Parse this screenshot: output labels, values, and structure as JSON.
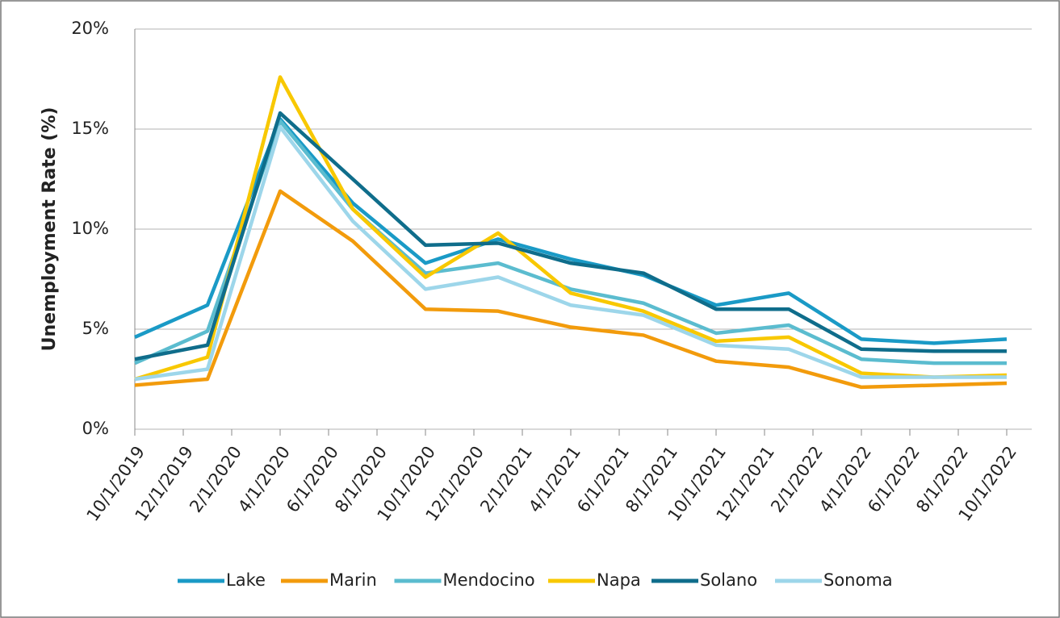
{
  "chart_data": {
    "type": "line",
    "y_label": "Unemployment Rate (%)",
    "x": [
      "2019-10",
      "2020-01",
      "2020-04",
      "2020-07",
      "2020-10",
      "2021-01",
      "2021-04",
      "2021-07",
      "2021-10",
      "2022-01",
      "2022-04",
      "2022-07",
      "2022-10"
    ],
    "xlim": [
      "2019-10",
      "2022-10"
    ],
    "xticks": [
      {
        "value": "2019-10",
        "label": "10/1/2019"
      },
      {
        "value": "2019-12",
        "label": "12/1/2019"
      },
      {
        "value": "2020-02",
        "label": "2/1/2020"
      },
      {
        "value": "2020-04",
        "label": "4/1/2020"
      },
      {
        "value": "2020-06",
        "label": "6/1/2020"
      },
      {
        "value": "2020-08",
        "label": "8/1/2020"
      },
      {
        "value": "2020-10",
        "label": "10/1/2020"
      },
      {
        "value": "2020-12",
        "label": "12/1/2020"
      },
      {
        "value": "2021-02",
        "label": "2/1/2021"
      },
      {
        "value": "2021-04",
        "label": "4/1/2021"
      },
      {
        "value": "2021-06",
        "label": "6/1/2021"
      },
      {
        "value": "2021-08",
        "label": "8/1/2021"
      },
      {
        "value": "2021-10",
        "label": "10/1/2021"
      },
      {
        "value": "2021-12",
        "label": "12/1/2021"
      },
      {
        "value": "2022-02",
        "label": "2/1/2022"
      },
      {
        "value": "2022-04",
        "label": "4/1/2022"
      },
      {
        "value": "2022-06",
        "label": "6/1/2022"
      },
      {
        "value": "2022-08",
        "label": "8/1/2022"
      },
      {
        "value": "2022-10",
        "label": "10/1/2022"
      }
    ],
    "ylim": [
      0,
      20
    ],
    "yticks": [
      {
        "value": 0,
        "label": "0%"
      },
      {
        "value": 5,
        "label": "5%"
      },
      {
        "value": 10,
        "label": "10%"
      },
      {
        "value": 15,
        "label": "15%"
      },
      {
        "value": 20,
        "label": "20%"
      }
    ],
    "grid": true,
    "legend": "bottom",
    "series": [
      {
        "name": "Lake",
        "color": "#1a9ac6",
        "values": [
          4.6,
          6.2,
          15.5,
          11.3,
          8.3,
          9.5,
          8.5,
          7.7,
          6.2,
          6.8,
          4.5,
          4.3,
          4.5
        ]
      },
      {
        "name": "Marin",
        "color": "#f29b0c",
        "values": [
          2.2,
          2.5,
          11.9,
          9.4,
          6.0,
          5.9,
          5.1,
          4.7,
          3.4,
          3.1,
          2.1,
          2.2,
          2.3
        ]
      },
      {
        "name": "Mendocino",
        "color": "#5bbccf",
        "values": [
          3.3,
          4.9,
          15.4,
          11.0,
          7.8,
          8.3,
          7.0,
          6.3,
          4.8,
          5.2,
          3.5,
          3.3,
          3.3
        ]
      },
      {
        "name": "Napa",
        "color": "#f8c800",
        "values": [
          2.5,
          3.6,
          17.6,
          11.0,
          7.6,
          9.8,
          6.8,
          5.9,
          4.4,
          4.6,
          2.8,
          2.6,
          2.7
        ]
      },
      {
        "name": "Solano",
        "color": "#0f6d8b",
        "values": [
          3.5,
          4.2,
          15.8,
          12.5,
          9.2,
          9.3,
          8.3,
          7.8,
          6.0,
          6.0,
          4.0,
          3.9,
          3.9
        ]
      },
      {
        "name": "Sonoma",
        "color": "#9dd6ea",
        "values": [
          2.5,
          3.0,
          15.1,
          10.4,
          7.0,
          7.6,
          6.2,
          5.7,
          4.2,
          4.0,
          2.6,
          2.6,
          2.6
        ]
      }
    ]
  }
}
